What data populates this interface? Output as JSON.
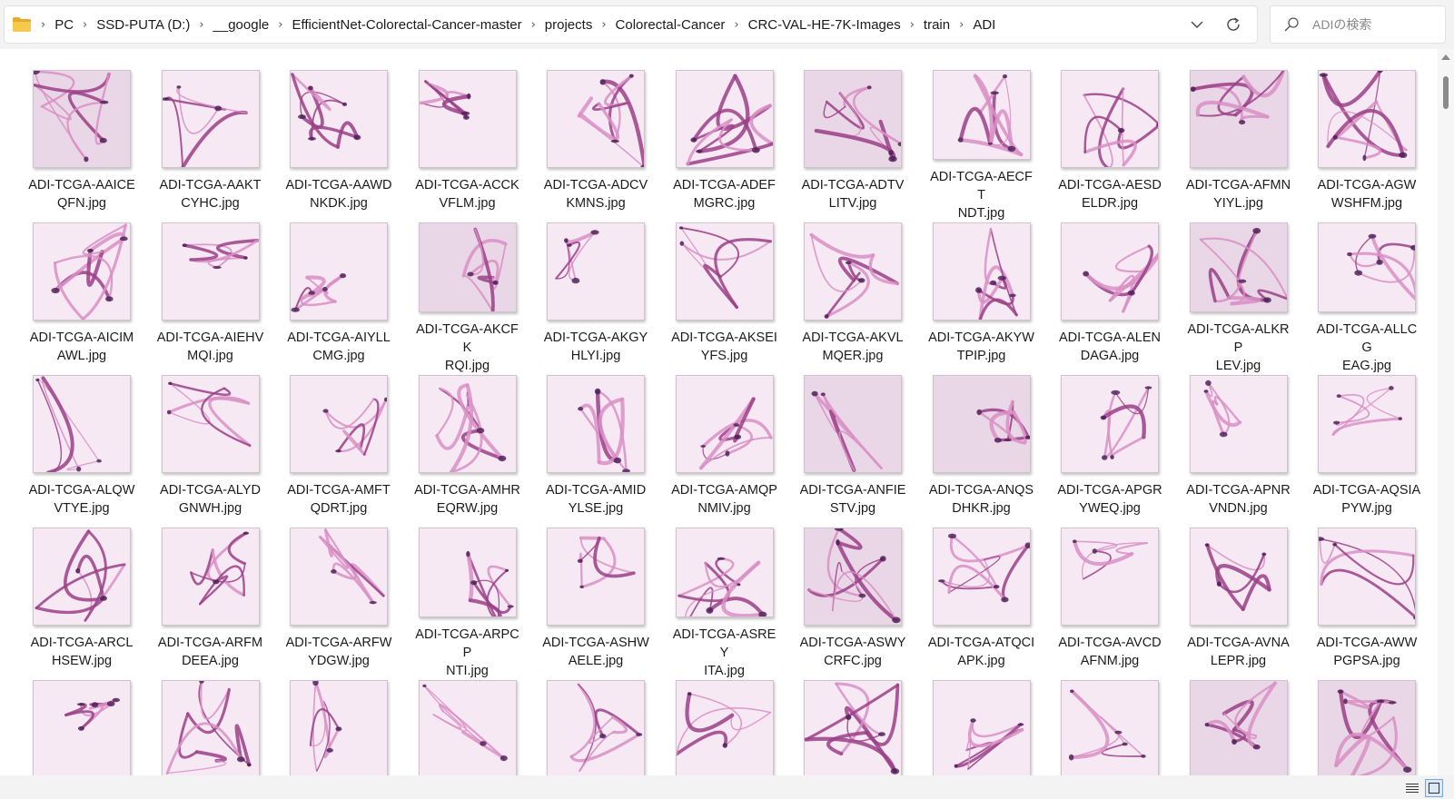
{
  "breadcrumb": [
    "PC",
    "SSD-PUTA (D:)",
    "__google",
    "EfficientNet-Colorectal-Cancer-master",
    "projects",
    "Colorectal-Cancer",
    "CRC-VAL-HE-7K-Images",
    "train",
    "ADI"
  ],
  "search": {
    "placeholder": "ADIの検索"
  },
  "icons": {
    "folder": "folder-icon",
    "breadcrumb_separator": "chevron-right-icon",
    "history": "chevron-down-icon",
    "refresh": "refresh-icon",
    "search": "search-icon",
    "details_view": "details-view-icon",
    "large_icons_view": "large-icons-view-icon"
  },
  "colors": {
    "accent": "#f4c142",
    "tissue_light": "#f6e9f3",
    "tissue_mid": "#d98fc4",
    "tissue_dark": "#9b3f86",
    "nucleus": "#4a1d55"
  },
  "files": [
    {
      "line1": "ADI-TCGA-AAICE",
      "line2": "QFN.jpg"
    },
    {
      "line1": "ADI-TCGA-AAKT",
      "line2": "CYHC.jpg"
    },
    {
      "line1": "ADI-TCGA-AAWD",
      "line2": "NKDK.jpg"
    },
    {
      "line1": "ADI-TCGA-ACCK",
      "line2": "VFLM.jpg"
    },
    {
      "line1": "ADI-TCGA-ADCV",
      "line2": "KMNS.jpg"
    },
    {
      "line1": "ADI-TCGA-ADEF",
      "line2": "MGRC.jpg"
    },
    {
      "line1": "ADI-TCGA-ADTV",
      "line2": "LITV.jpg"
    },
    {
      "line1": "ADI-TCGA-AECFT",
      "line2": "NDT.jpg"
    },
    {
      "line1": "ADI-TCGA-AESD",
      "line2": "ELDR.jpg"
    },
    {
      "line1": "ADI-TCGA-AFMN",
      "line2": "YIYL.jpg"
    },
    {
      "line1": "ADI-TCGA-AGW",
      "line2": "WSHFM.jpg"
    },
    {
      "line1": "ADI-TCGA-AICIM",
      "line2": "AWL.jpg"
    },
    {
      "line1": "ADI-TCGA-AIEHV",
      "line2": "MQI.jpg"
    },
    {
      "line1": "ADI-TCGA-AIYLL",
      "line2": "CMG.jpg"
    },
    {
      "line1": "ADI-TCGA-AKCFK",
      "line2": "RQI.jpg"
    },
    {
      "line1": "ADI-TCGA-AKGY",
      "line2": "HLYI.jpg"
    },
    {
      "line1": "ADI-TCGA-AKSEI",
      "line2": "YFS.jpg"
    },
    {
      "line1": "ADI-TCGA-AKVL",
      "line2": "MQER.jpg"
    },
    {
      "line1": "ADI-TCGA-AKYW",
      "line2": "TPIP.jpg"
    },
    {
      "line1": "ADI-TCGA-ALEN",
      "line2": "DAGA.jpg"
    },
    {
      "line1": "ADI-TCGA-ALKRP",
      "line2": "LEV.jpg"
    },
    {
      "line1": "ADI-TCGA-ALLCG",
      "line2": "EAG.jpg"
    },
    {
      "line1": "ADI-TCGA-ALQW",
      "line2": "VTYE.jpg"
    },
    {
      "line1": "ADI-TCGA-ALYD",
      "line2": "GNWH.jpg"
    },
    {
      "line1": "ADI-TCGA-AMFT",
      "line2": "QDRT.jpg"
    },
    {
      "line1": "ADI-TCGA-AMHR",
      "line2": "EQRW.jpg"
    },
    {
      "line1": "ADI-TCGA-AMID",
      "line2": "YLSE.jpg"
    },
    {
      "line1": "ADI-TCGA-AMQP",
      "line2": "NMIV.jpg"
    },
    {
      "line1": "ADI-TCGA-ANFIE",
      "line2": "STV.jpg"
    },
    {
      "line1": "ADI-TCGA-ANQS",
      "line2": "DHKR.jpg"
    },
    {
      "line1": "ADI-TCGA-APGR",
      "line2": "YWEQ.jpg"
    },
    {
      "line1": "ADI-TCGA-APNR",
      "line2": "VNDN.jpg"
    },
    {
      "line1": "ADI-TCGA-AQSIA",
      "line2": "PYW.jpg"
    },
    {
      "line1": "ADI-TCGA-ARCL",
      "line2": "HSEW.jpg"
    },
    {
      "line1": "ADI-TCGA-ARFM",
      "line2": "DEEA.jpg"
    },
    {
      "line1": "ADI-TCGA-ARFW",
      "line2": "YDGW.jpg"
    },
    {
      "line1": "ADI-TCGA-ARPCP",
      "line2": "NTI.jpg"
    },
    {
      "line1": "ADI-TCGA-ASHW",
      "line2": "AELE.jpg"
    },
    {
      "line1": "ADI-TCGA-ASREY",
      "line2": "ITA.jpg"
    },
    {
      "line1": "ADI-TCGA-ASWY",
      "line2": "CRFC.jpg"
    },
    {
      "line1": "ADI-TCGA-ATQCI",
      "line2": "APK.jpg"
    },
    {
      "line1": "ADI-TCGA-AVCD",
      "line2": "AFNM.jpg"
    },
    {
      "line1": "ADI-TCGA-AVNA",
      "line2": "LEPR.jpg"
    },
    {
      "line1": "ADI-TCGA-AWW",
      "line2": "PGPSA.jpg"
    },
    {
      "line1": "",
      "line2": ""
    },
    {
      "line1": "",
      "line2": ""
    },
    {
      "line1": "",
      "line2": ""
    },
    {
      "line1": "",
      "line2": ""
    },
    {
      "line1": "",
      "line2": ""
    },
    {
      "line1": "",
      "line2": ""
    },
    {
      "line1": "",
      "line2": ""
    },
    {
      "line1": "",
      "line2": ""
    },
    {
      "line1": "",
      "line2": ""
    },
    {
      "line1": "",
      "line2": ""
    },
    {
      "line1": "",
      "line2": ""
    }
  ]
}
